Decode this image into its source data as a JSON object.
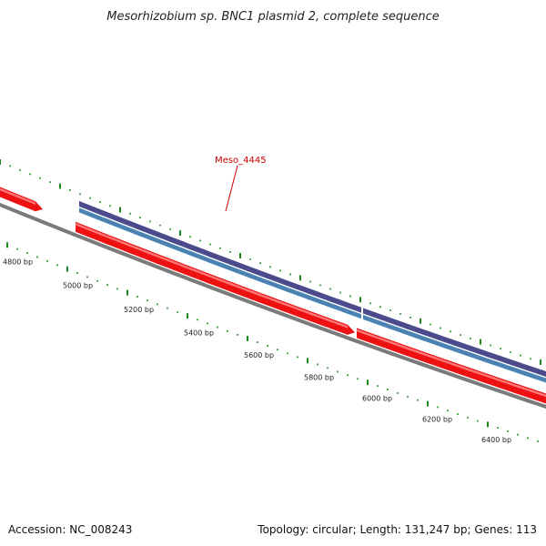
{
  "map": {
    "title": "Mesorhizobium sp. BNC1 plasmid 2, complete sequence",
    "accession_text": "Accession: NC_008243",
    "summary_text": "Topology: circular; Length: 131,247 bp; Genes: 113",
    "highlighted_gene": "Meso_4445",
    "tick_labels": [
      "4800 bp",
      "5000 bp",
      "5200 bp",
      "5400 bp",
      "5600 bp",
      "5800 bp",
      "6000 bp",
      "6200 bp",
      "6400 bp"
    ]
  },
  "colors": {
    "forward_gene": "#ee1111",
    "gene_highlight": "#ff7777",
    "cds_outer": "#4a4a8c",
    "cds_inner": "#4a82b4",
    "backbone": "#7a7a7a",
    "tick": "#1a8a1a",
    "gene_label": "#cc0000",
    "text": "#111111"
  }
}
